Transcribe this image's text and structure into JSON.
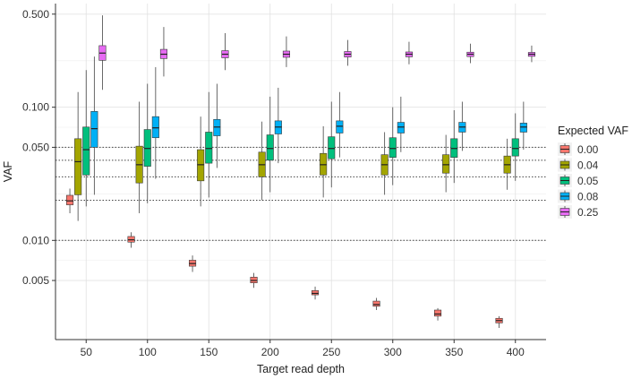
{
  "chart_data": {
    "type": "box",
    "xlabel": "Target read depth",
    "ylabel": "VAF",
    "y_scale": "log10",
    "ylim": [
      0.0018,
      0.6
    ],
    "y_ticks": [
      {
        "value": 0.005,
        "label": "0.005"
      },
      {
        "value": 0.01,
        "label": "0.010"
      },
      {
        "value": 0.05,
        "label": "0.050"
      },
      {
        "value": 0.1,
        "label": "0.100"
      },
      {
        "value": 0.5,
        "label": "0.500"
      }
    ],
    "categories": [
      "50",
      "100",
      "150",
      "200",
      "250",
      "300",
      "350",
      "400"
    ],
    "reference_lines": [
      0.01,
      0.02,
      0.03,
      0.04,
      0.05
    ],
    "grid": true,
    "legend": {
      "title": "Expected VAF",
      "position": "right"
    },
    "series": [
      {
        "name": "0.00",
        "color": "#F8766D",
        "boxes": [
          {
            "q1": 0.0185,
            "median": 0.0198,
            "q3": 0.0218,
            "whisker_low": 0.016,
            "whisker_high": 0.0245
          },
          {
            "q1": 0.0097,
            "median": 0.0101,
            "q3": 0.0107,
            "whisker_low": 0.0088,
            "whisker_high": 0.0115
          },
          {
            "q1": 0.0064,
            "median": 0.0067,
            "q3": 0.0071,
            "whisker_low": 0.0058,
            "whisker_high": 0.0077
          },
          {
            "q1": 0.0048,
            "median": 0.005,
            "q3": 0.0053,
            "whisker_low": 0.0044,
            "whisker_high": 0.0057
          },
          {
            "q1": 0.0039,
            "median": 0.004,
            "q3": 0.0042,
            "whisker_low": 0.0036,
            "whisker_high": 0.0045
          },
          {
            "q1": 0.0032,
            "median": 0.0033,
            "q3": 0.0035,
            "whisker_low": 0.003,
            "whisker_high": 0.0037
          },
          {
            "q1": 0.0027,
            "median": 0.0028,
            "q3": 0.003,
            "whisker_low": 0.0025,
            "whisker_high": 0.0031
          },
          {
            "q1": 0.0024,
            "median": 0.0025,
            "q3": 0.0026,
            "whisker_low": 0.0022,
            "whisker_high": 0.0027
          }
        ]
      },
      {
        "name": "0.04",
        "color": "#A3A500",
        "boxes": [
          {
            "q1": 0.022,
            "median": 0.039,
            "q3": 0.058,
            "whisker_low": 0.014,
            "whisker_high": 0.13
          },
          {
            "q1": 0.027,
            "median": 0.037,
            "q3": 0.051,
            "whisker_low": 0.016,
            "whisker_high": 0.11
          },
          {
            "q1": 0.028,
            "median": 0.037,
            "q3": 0.048,
            "whisker_low": 0.018,
            "whisker_high": 0.085
          },
          {
            "q1": 0.03,
            "median": 0.037,
            "q3": 0.046,
            "whisker_low": 0.02,
            "whisker_high": 0.078
          },
          {
            "q1": 0.031,
            "median": 0.037,
            "q3": 0.045,
            "whisker_low": 0.021,
            "whisker_high": 0.072
          },
          {
            "q1": 0.031,
            "median": 0.037,
            "q3": 0.044,
            "whisker_low": 0.022,
            "whisker_high": 0.065
          },
          {
            "q1": 0.032,
            "median": 0.037,
            "q3": 0.044,
            "whisker_low": 0.023,
            "whisker_high": 0.062
          },
          {
            "q1": 0.032,
            "median": 0.037,
            "q3": 0.043,
            "whisker_low": 0.024,
            "whisker_high": 0.058
          }
        ]
      },
      {
        "name": "0.05",
        "color": "#00BF7D",
        "boxes": [
          {
            "q1": 0.031,
            "median": 0.048,
            "q3": 0.071,
            "whisker_low": 0.018,
            "whisker_high": 0.19
          },
          {
            "q1": 0.036,
            "median": 0.049,
            "q3": 0.068,
            "whisker_low": 0.019,
            "whisker_high": 0.15
          },
          {
            "q1": 0.038,
            "median": 0.049,
            "q3": 0.065,
            "whisker_low": 0.021,
            "whisker_high": 0.13
          },
          {
            "q1": 0.04,
            "median": 0.049,
            "q3": 0.062,
            "whisker_low": 0.023,
            "whisker_high": 0.12
          },
          {
            "q1": 0.041,
            "median": 0.049,
            "q3": 0.06,
            "whisker_low": 0.025,
            "whisker_high": 0.11
          },
          {
            "q1": 0.042,
            "median": 0.049,
            "q3": 0.059,
            "whisker_low": 0.026,
            "whisker_high": 0.1
          },
          {
            "q1": 0.042,
            "median": 0.049,
            "q3": 0.058,
            "whisker_low": 0.027,
            "whisker_high": 0.095
          },
          {
            "q1": 0.043,
            "median": 0.049,
            "q3": 0.058,
            "whisker_low": 0.028,
            "whisker_high": 0.09
          }
        ]
      },
      {
        "name": "0.08",
        "color": "#00B0F6",
        "boxes": [
          {
            "q1": 0.05,
            "median": 0.069,
            "q3": 0.093,
            "whisker_low": 0.022,
            "whisker_high": 0.24
          },
          {
            "q1": 0.059,
            "median": 0.07,
            "q3": 0.085,
            "whisker_low": 0.029,
            "whisker_high": 0.2
          },
          {
            "q1": 0.061,
            "median": 0.071,
            "q3": 0.081,
            "whisker_low": 0.035,
            "whisker_high": 0.15
          },
          {
            "q1": 0.063,
            "median": 0.071,
            "q3": 0.079,
            "whisker_low": 0.038,
            "whisker_high": 0.14
          },
          {
            "q1": 0.064,
            "median": 0.072,
            "q3": 0.079,
            "whisker_low": 0.042,
            "whisker_high": 0.13
          },
          {
            "q1": 0.064,
            "median": 0.071,
            "q3": 0.077,
            "whisker_low": 0.046,
            "whisker_high": 0.12
          },
          {
            "q1": 0.065,
            "median": 0.071,
            "q3": 0.077,
            "whisker_low": 0.047,
            "whisker_high": 0.11
          },
          {
            "q1": 0.065,
            "median": 0.071,
            "q3": 0.076,
            "whisker_low": 0.048,
            "whisker_high": 0.11
          }
        ]
      },
      {
        "name": "0.25",
        "color": "#E76BF3",
        "boxes": [
          {
            "q1": 0.225,
            "median": 0.255,
            "q3": 0.29,
            "whisker_low": 0.135,
            "whisker_high": 0.49
          },
          {
            "q1": 0.232,
            "median": 0.25,
            "q3": 0.272,
            "whisker_low": 0.17,
            "whisker_high": 0.4
          },
          {
            "q1": 0.235,
            "median": 0.25,
            "q3": 0.266,
            "whisker_low": 0.19,
            "whisker_high": 0.36
          },
          {
            "q1": 0.237,
            "median": 0.25,
            "q3": 0.264,
            "whisker_low": 0.2,
            "whisker_high": 0.34
          },
          {
            "q1": 0.238,
            "median": 0.25,
            "q3": 0.262,
            "whisker_low": 0.205,
            "whisker_high": 0.32
          },
          {
            "q1": 0.239,
            "median": 0.25,
            "q3": 0.26,
            "whisker_low": 0.21,
            "whisker_high": 0.31
          },
          {
            "q1": 0.24,
            "median": 0.25,
            "q3": 0.259,
            "whisker_low": 0.214,
            "whisker_high": 0.3
          },
          {
            "q1": 0.241,
            "median": 0.25,
            "q3": 0.258,
            "whisker_low": 0.218,
            "whisker_high": 0.29
          }
        ]
      }
    ]
  }
}
